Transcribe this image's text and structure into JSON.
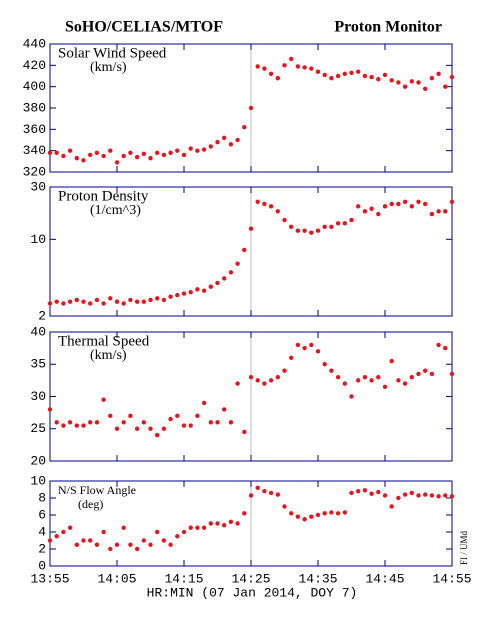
{
  "title": "SoHO/CELIAS/MTOF",
  "subtitle": "Proton Monitor",
  "credit": "FI / UMd",
  "xlabel": "HR:MIN (07 Jan 2014, DOY 7)",
  "chart_data": [
    {
      "type": "scatter",
      "label": "Solar Wind Speed",
      "units": "(km/s)",
      "color": "#e8141c",
      "vline": "14:25",
      "x": [
        "13:55",
        "13:56",
        "13:57",
        "13:58",
        "13:59",
        "14:00",
        "14:01",
        "14:02",
        "14:03",
        "14:04",
        "14:05",
        "14:06",
        "14:07",
        "14:08",
        "14:09",
        "14:10",
        "14:11",
        "14:12",
        "14:13",
        "14:14",
        "14:15",
        "14:16",
        "14:17",
        "14:18",
        "14:19",
        "14:20",
        "14:21",
        "14:22",
        "14:23",
        "14:24",
        "14:25",
        "14:26",
        "14:27",
        "14:28",
        "14:29",
        "14:30",
        "14:31",
        "14:32",
        "14:33",
        "14:34",
        "14:35",
        "14:36",
        "14:37",
        "14:38",
        "14:39",
        "14:40",
        "14:41",
        "14:42",
        "14:43",
        "14:44",
        "14:45",
        "14:46",
        "14:47",
        "14:48",
        "14:49",
        "14:50",
        "14:51",
        "14:52",
        "14:53",
        "14:54",
        "14:55"
      ],
      "values": [
        338,
        338,
        335,
        340,
        333,
        331,
        336,
        338,
        335,
        340,
        329,
        335,
        338,
        334,
        337,
        333,
        338,
        336,
        338,
        340,
        336,
        342,
        340,
        341,
        344,
        348,
        352,
        346,
        350,
        362,
        380,
        419,
        417,
        412,
        408,
        420,
        426,
        419,
        418,
        417,
        414,
        411,
        408,
        410,
        412,
        413,
        414,
        410,
        409,
        407,
        411,
        406,
        404,
        400,
        405,
        404,
        398,
        408,
        412,
        400,
        409
      ],
      "xlim": [
        "13:55",
        "14:55"
      ],
      "xticks": [
        "13:55",
        "14:05",
        "14:15",
        "14:25",
        "14:35",
        "14:45",
        "14:55"
      ],
      "ylim": [
        320,
        440
      ],
      "yticks": [
        320,
        340,
        360,
        380,
        400,
        420,
        440
      ]
    },
    {
      "type": "scatter",
      "label": "Proton Density",
      "units": "(1/cm^3)",
      "color": "#e8141c",
      "vline": "14:25",
      "log": true,
      "x": [
        "13:55",
        "13:56",
        "13:57",
        "13:58",
        "13:59",
        "14:00",
        "14:01",
        "14:02",
        "14:03",
        "14:04",
        "14:05",
        "14:06",
        "14:07",
        "14:08",
        "14:09",
        "14:10",
        "14:11",
        "14:12",
        "14:13",
        "14:14",
        "14:15",
        "14:16",
        "14:17",
        "14:18",
        "14:19",
        "14:20",
        "14:21",
        "14:22",
        "14:23",
        "14:24",
        "14:25",
        "14:26",
        "14:27",
        "14:28",
        "14:29",
        "14:30",
        "14:31",
        "14:32",
        "14:33",
        "14:34",
        "14:35",
        "14:36",
        "14:37",
        "14:38",
        "14:39",
        "14:40",
        "14:41",
        "14:42",
        "14:43",
        "14:44",
        "14:45",
        "14:46",
        "14:47",
        "14:48",
        "14:49",
        "14:50",
        "14:51",
        "14:52",
        "14:53",
        "14:54",
        "14:55"
      ],
      "values": [
        2.6,
        2.7,
        2.6,
        2.7,
        2.8,
        2.7,
        2.6,
        2.8,
        2.6,
        2.9,
        2.7,
        2.6,
        2.8,
        2.7,
        2.7,
        2.8,
        2.9,
        2.8,
        3.0,
        3.1,
        3.2,
        3.3,
        3.5,
        3.4,
        3.7,
        4.0,
        4.4,
        5.0,
        6.0,
        8.0,
        12.5,
        22,
        21,
        20,
        18,
        15,
        13,
        12,
        12,
        11.5,
        12,
        13,
        13,
        14,
        14,
        15,
        20,
        18,
        19,
        17,
        20,
        21,
        21,
        22,
        20,
        22,
        21,
        17,
        18,
        18,
        22
      ],
      "xlim": [
        "13:55",
        "14:55"
      ],
      "xticks": [
        "13:55",
        "14:05",
        "14:15",
        "14:25",
        "14:35",
        "14:45",
        "14:55"
      ],
      "ylim": [
        2,
        30
      ],
      "yticks": [
        2,
        10,
        30
      ]
    },
    {
      "type": "scatter",
      "label": "Thermal Speed",
      "units": "(km/s)",
      "color": "#e8141c",
      "vline": "14:25",
      "x": [
        "13:55",
        "13:56",
        "13:57",
        "13:58",
        "13:59",
        "14:00",
        "14:01",
        "14:02",
        "14:03",
        "14:04",
        "14:05",
        "14:06",
        "14:07",
        "14:08",
        "14:09",
        "14:10",
        "14:11",
        "14:12",
        "14:13",
        "14:14",
        "14:15",
        "14:16",
        "14:17",
        "14:18",
        "14:19",
        "14:20",
        "14:21",
        "14:22",
        "14:23",
        "14:24",
        "14:25",
        "14:26",
        "14:27",
        "14:28",
        "14:29",
        "14:30",
        "14:31",
        "14:32",
        "14:33",
        "14:34",
        "14:35",
        "14:36",
        "14:37",
        "14:38",
        "14:39",
        "14:40",
        "14:41",
        "14:42",
        "14:43",
        "14:44",
        "14:45",
        "14:46",
        "14:47",
        "14:48",
        "14:49",
        "14:50",
        "14:51",
        "14:52",
        "14:53",
        "14:54",
        "14:55"
      ],
      "values": [
        28,
        26,
        25.5,
        26,
        25.5,
        25.5,
        26,
        26,
        29.5,
        27,
        25,
        26,
        27,
        25,
        26,
        25,
        24,
        25,
        26.5,
        27,
        25.5,
        25.5,
        27,
        29,
        26,
        26,
        28,
        26,
        32,
        24.5,
        33,
        32.5,
        32,
        32.5,
        33,
        34,
        36,
        38,
        37.5,
        38,
        37,
        35,
        34,
        33,
        32,
        30,
        32.5,
        33,
        32.5,
        33,
        31.5,
        35.5,
        32.5,
        32,
        33,
        33.5,
        34,
        33.5,
        38,
        37.5,
        33.5
      ],
      "xlim": [
        "13:55",
        "14:55"
      ],
      "xticks": [
        "13:55",
        "14:05",
        "14:15",
        "14:25",
        "14:35",
        "14:45",
        "14:55"
      ],
      "ylim": [
        20,
        40
      ],
      "yticks": [
        20,
        25,
        30,
        35,
        40
      ]
    },
    {
      "type": "scatter",
      "label": "N/S Flow Angle",
      "units": "(deg)",
      "color": "#e8141c",
      "vline": "14:25",
      "x": [
        "13:55",
        "13:56",
        "13:57",
        "13:58",
        "13:59",
        "14:00",
        "14:01",
        "14:02",
        "14:03",
        "14:04",
        "14:05",
        "14:06",
        "14:07",
        "14:08",
        "14:09",
        "14:10",
        "14:11",
        "14:12",
        "14:13",
        "14:14",
        "14:15",
        "14:16",
        "14:17",
        "14:18",
        "14:19",
        "14:20",
        "14:21",
        "14:22",
        "14:23",
        "14:24",
        "14:25",
        "14:26",
        "14:27",
        "14:28",
        "14:29",
        "14:30",
        "14:31",
        "14:32",
        "14:33",
        "14:34",
        "14:35",
        "14:36",
        "14:37",
        "14:38",
        "14:39",
        "14:40",
        "14:41",
        "14:42",
        "14:43",
        "14:44",
        "14:45",
        "14:46",
        "14:47",
        "14:48",
        "14:49",
        "14:50",
        "14:51",
        "14:52",
        "14:53",
        "14:54",
        "14:55"
      ],
      "values": [
        3,
        3.5,
        4,
        4.5,
        2.5,
        3,
        3,
        2.5,
        4,
        2,
        2.5,
        4.5,
        2.5,
        2,
        3,
        2.5,
        4,
        3,
        2.5,
        3.5,
        4,
        4.5,
        4.5,
        4.5,
        5,
        5,
        4.8,
        5.2,
        5,
        6.2,
        8.3,
        9.2,
        8.8,
        8.6,
        8.4,
        7,
        6.2,
        5.8,
        5.5,
        5.8,
        6,
        6.2,
        6.3,
        6.2,
        6.3,
        8.6,
        8.8,
        8.9,
        8.5,
        8.7,
        8.3,
        7,
        8,
        8.4,
        8.6,
        8.3,
        8.4,
        8.3,
        8.2,
        8.3,
        8.2
      ],
      "xlim": [
        "13:55",
        "14:55"
      ],
      "xticks": [
        "13:55",
        "14:05",
        "14:15",
        "14:25",
        "14:35",
        "14:45",
        "14:55"
      ],
      "ylim": [
        0,
        10
      ],
      "yticks": [
        0,
        2,
        4,
        6,
        8,
        10
      ]
    }
  ]
}
